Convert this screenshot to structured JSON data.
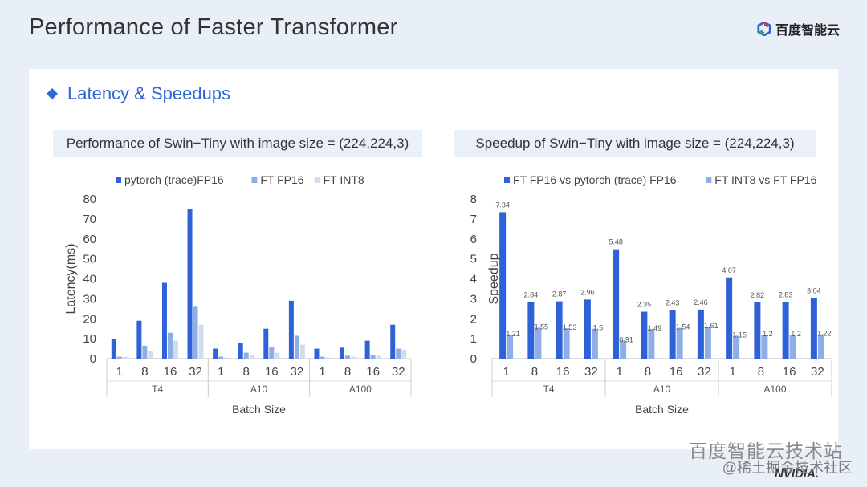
{
  "slide": {
    "title": "Performance of Faster Transformer",
    "brand": "百度智能云",
    "section_title": "Latency & Speedups"
  },
  "watermark": {
    "line1": "百度智能云技术站",
    "line2": "@稀土掘金技术社区",
    "nvidia": "NVIDIA."
  },
  "colors": {
    "dark_blue": "#2f62d8",
    "mid_blue": "#8eaee8",
    "light_blue": "#d2dcee",
    "accent": "#2f67d6"
  },
  "chart_data": [
    {
      "type": "bar",
      "title": "Performance of Swin−Tiny with image size = (224,224,3)",
      "xlabel": "Batch Size",
      "ylabel": "Latency(ms)",
      "ylim": [
        0,
        80
      ],
      "yticks": [
        0,
        10,
        20,
        30,
        40,
        50,
        60,
        70,
        80
      ],
      "legend": "top",
      "groups": [
        {
          "name": "T4",
          "categories": [
            "1",
            "8",
            "16",
            "32"
          ]
        },
        {
          "name": "A10",
          "categories": [
            "1",
            "8",
            "16",
            "32"
          ]
        },
        {
          "name": "A100",
          "categories": [
            "1",
            "8",
            "16",
            "32"
          ]
        }
      ],
      "series": [
        {
          "name": "pytorch (trace)FP16",
          "color": "#2f62d8",
          "values": [
            10,
            19,
            38,
            75,
            5,
            8,
            15,
            29,
            5,
            5.5,
            9,
            17
          ]
        },
        {
          "name": "FT FP16",
          "color": "#8eaee8",
          "values": [
            1,
            6.5,
            13,
            26,
            1,
            3,
            6,
            11.5,
            1,
            1.5,
            2,
            5
          ]
        },
        {
          "name": "FT INT8",
          "color": "#d2dcee",
          "values": [
            0.8,
            4,
            9,
            17,
            0.6,
            2,
            3,
            7,
            0.6,
            1,
            1.5,
            4.5
          ]
        }
      ]
    },
    {
      "type": "bar",
      "title": "Speedup of Swin−Tiny with image size = (224,224,3)",
      "xlabel": "Batch Size",
      "ylabel": "Speedup",
      "ylim": [
        0,
        8
      ],
      "yticks": [
        0,
        1,
        2,
        3,
        4,
        5,
        6,
        7,
        8
      ],
      "legend": "top",
      "groups": [
        {
          "name": "T4",
          "categories": [
            "1",
            "8",
            "16",
            "32"
          ]
        },
        {
          "name": "A10",
          "categories": [
            "1",
            "8",
            "16",
            "32"
          ]
        },
        {
          "name": "A100",
          "categories": [
            "1",
            "8",
            "16",
            "32"
          ]
        }
      ],
      "series": [
        {
          "name": "FT FP16 vs pytorch (trace) FP16",
          "color": "#2f62d8",
          "values": [
            7.34,
            2.84,
            2.87,
            2.96,
            5.48,
            2.35,
            2.43,
            2.46,
            4.07,
            2.82,
            2.83,
            3.04
          ],
          "labels": [
            "7.34",
            "2.84",
            "2.87",
            "2.96",
            "5.48",
            "2.35",
            "2.43",
            "2.46",
            "4.07",
            "2.82",
            "2.83",
            "3.04"
          ]
        },
        {
          "name": "FT INT8 vs FT FP16",
          "color": "#8eaee8",
          "values": [
            1.21,
            1.55,
            1.53,
            1.5,
            0.91,
            1.49,
            1.54,
            1.61,
            1.15,
            1.2,
            1.2,
            1.22
          ],
          "labels": [
            "1.21",
            "1.55",
            "1.53",
            "1.5",
            "0.91",
            "1.49",
            "1.54",
            "1.61",
            "1.15",
            "1.2",
            "1.2",
            "1.22"
          ]
        }
      ]
    }
  ]
}
